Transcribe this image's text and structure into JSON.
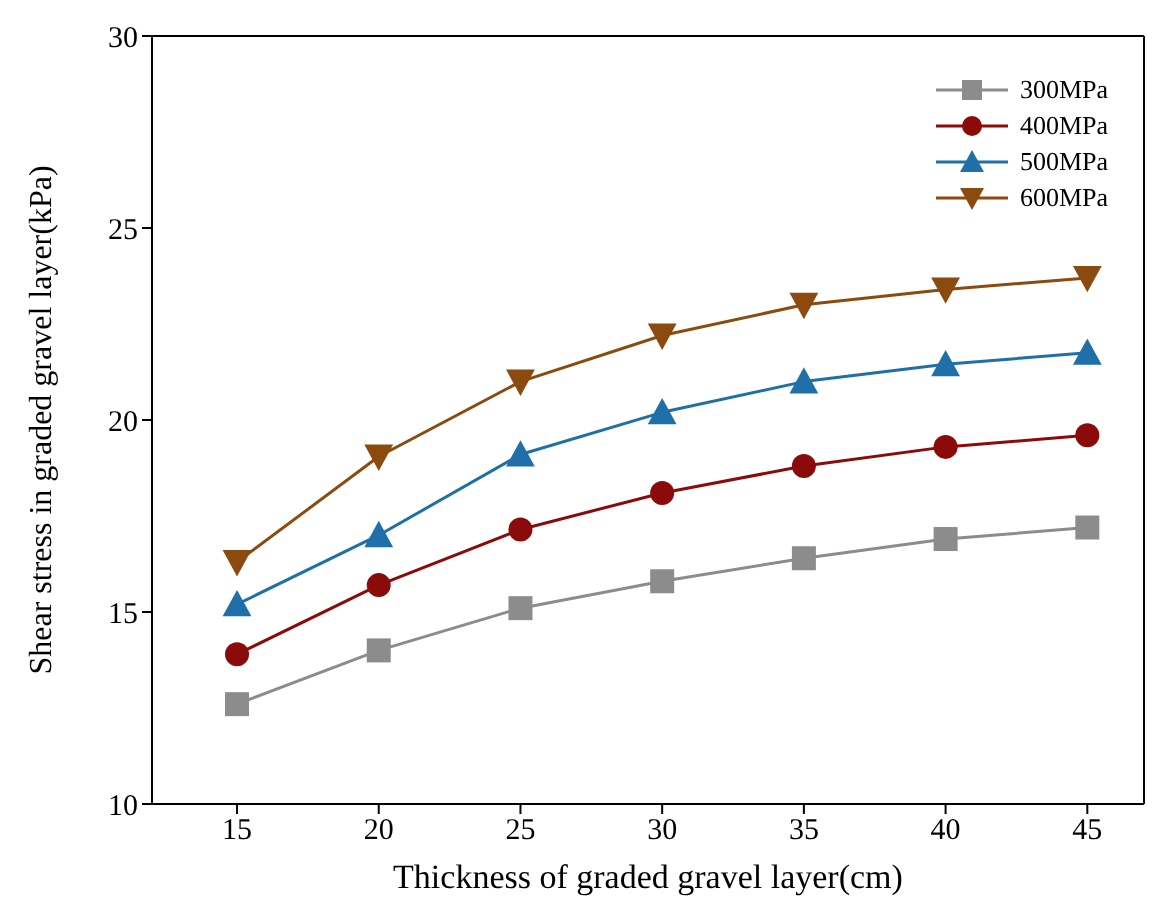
{
  "chart_data": {
    "type": "line",
    "xlabel": "Thickness of graded gravel layer(cm)",
    "ylabel": "Shear stress in graded gravel layer(kPa)",
    "x": [
      15,
      20,
      25,
      30,
      35,
      40,
      45
    ],
    "series": [
      {
        "name": "300MPa",
        "color": "#8c8c8c",
        "marker": "square",
        "values": [
          12.6,
          14.0,
          15.1,
          15.8,
          16.4,
          16.9,
          17.2
        ]
      },
      {
        "name": "400MPa",
        "color": "#8b0a0a",
        "marker": "circle",
        "values": [
          13.9,
          15.7,
          17.15,
          18.1,
          18.8,
          19.3,
          19.6
        ]
      },
      {
        "name": "500MPa",
        "color": "#1f6fa8",
        "marker": "triangle",
        "values": [
          15.2,
          17.0,
          19.1,
          20.2,
          21.0,
          21.45,
          21.75
        ]
      },
      {
        "name": "600MPa",
        "color": "#8b4a0e",
        "marker": "triangle-down",
        "values": [
          16.3,
          19.05,
          21.0,
          22.2,
          23.0,
          23.4,
          23.7
        ]
      }
    ],
    "xlim": [
      12,
      47
    ],
    "xticks": [
      15,
      20,
      25,
      30,
      35,
      40,
      45
    ],
    "ylim": [
      10,
      30
    ],
    "yticks": [
      10,
      15,
      20,
      25,
      30
    ],
    "grid": false,
    "legend": "top right",
    "line_style": "solid"
  }
}
